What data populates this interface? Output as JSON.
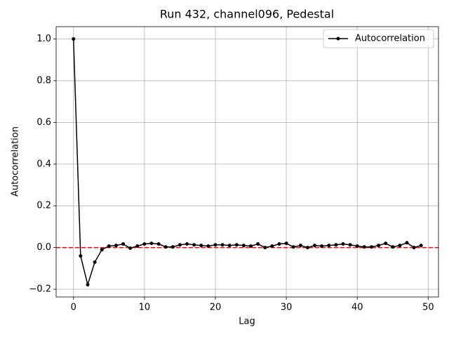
{
  "chart_data": {
    "type": "line",
    "title": "Run 432, channel096, Pedestal",
    "x_label": "Lag",
    "y_label": "Autocorrelation",
    "x": [
      0,
      1,
      2,
      3,
      4,
      5,
      6,
      7,
      8,
      9,
      10,
      11,
      12,
      13,
      14,
      15,
      16,
      17,
      18,
      19,
      20,
      21,
      22,
      23,
      24,
      25,
      26,
      27,
      28,
      29,
      30,
      31,
      32,
      33,
      34,
      35,
      36,
      37,
      38,
      39,
      40,
      41,
      42,
      43,
      44,
      45,
      46,
      47,
      48,
      49
    ],
    "series": [
      {
        "name": "Autocorrelation",
        "color": "#000000",
        "values": [
          1.0,
          -0.04,
          -0.178,
          -0.07,
          -0.01,
          0.007,
          0.01,
          0.017,
          -0.003,
          0.007,
          0.017,
          0.02,
          0.017,
          0.003,
          0.003,
          0.013,
          0.017,
          0.013,
          0.01,
          0.007,
          0.013,
          0.013,
          0.01,
          0.013,
          0.01,
          0.007,
          0.017,
          0.0,
          0.007,
          0.017,
          0.02,
          0.003,
          0.01,
          0.0,
          0.01,
          0.007,
          0.01,
          0.013,
          0.017,
          0.013,
          0.007,
          0.003,
          0.003,
          0.01,
          0.02,
          0.003,
          0.01,
          0.023,
          0.0,
          0.01
        ]
      }
    ],
    "hline": {
      "value": 0,
      "color": "#ff0000"
    },
    "xlim": [
      -2.45,
      51.45
    ],
    "ylim": [
      -0.237,
      1.059
    ],
    "xticks": [
      0,
      10,
      20,
      30,
      40,
      50
    ],
    "yticks": [
      {
        "value": -0.2,
        "label": "−0.2"
      },
      {
        "value": 0,
        "label": "0.0"
      },
      {
        "value": 0.2,
        "label": "0.2"
      },
      {
        "value": 0.4,
        "label": "0.4"
      },
      {
        "value": 0.6,
        "label": "0.6"
      },
      {
        "value": 0.8,
        "label": "0.8"
      },
      {
        "value": 1.0,
        "label": "1.0"
      }
    ],
    "grid": true,
    "legend": "upper right"
  }
}
